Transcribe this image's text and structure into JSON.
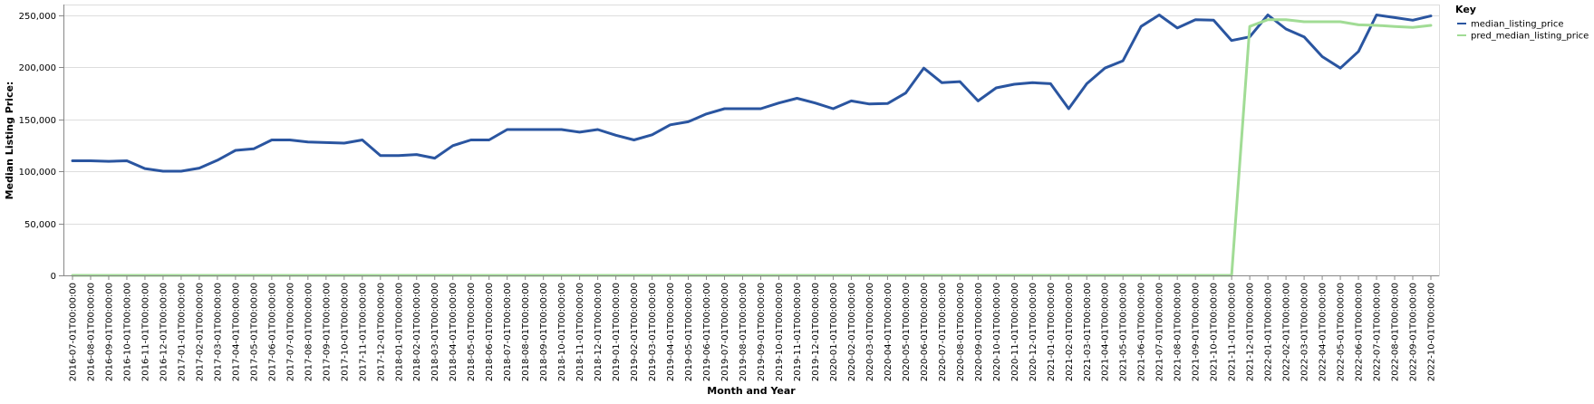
{
  "chart_data": {
    "type": "line",
    "xlabel": "Month and Year",
    "ylabel": "Median Listing Price:",
    "ylim": [
      0,
      260000
    ],
    "y_ticks": [
      "0",
      "50,000",
      "100,000",
      "150,000",
      "200,000",
      "250,000"
    ],
    "y_tick_values": [
      0,
      50000,
      100000,
      150000,
      200000,
      250000
    ],
    "grid": true,
    "legend_position": "top-right",
    "legend_title": "Key",
    "x": [
      "2016-07-01T00:00:00",
      "2016-08-01T00:00:00",
      "2016-09-01T00:00:00",
      "2016-10-01T00:00:00",
      "2016-11-01T00:00:00",
      "2016-12-01T00:00:00",
      "2017-01-01T00:00:00",
      "2017-02-01T00:00:00",
      "2017-03-01T00:00:00",
      "2017-04-01T00:00:00",
      "2017-05-01T00:00:00",
      "2017-06-01T00:00:00",
      "2017-07-01T00:00:00",
      "2017-08-01T00:00:00",
      "2017-09-01T00:00:00",
      "2017-10-01T00:00:00",
      "2017-11-01T00:00:00",
      "2017-12-01T00:00:00",
      "2018-01-01T00:00:00",
      "2018-02-01T00:00:00",
      "2018-03-01T00:00:00",
      "2018-04-01T00:00:00",
      "2018-05-01T00:00:00",
      "2018-06-01T00:00:00",
      "2018-07-01T00:00:00",
      "2018-08-01T00:00:00",
      "2018-09-01T00:00:00",
      "2018-10-01T00:00:00",
      "2018-11-01T00:00:00",
      "2018-12-01T00:00:00",
      "2019-01-01T00:00:00",
      "2019-02-01T00:00:00",
      "2019-03-01T00:00:00",
      "2019-04-01T00:00:00",
      "2019-05-01T00:00:00",
      "2019-06-01T00:00:00",
      "2019-07-01T00:00:00",
      "2019-08-01T00:00:00",
      "2019-09-01T00:00:00",
      "2019-10-01T00:00:00",
      "2019-11-01T00:00:00",
      "2019-12-01T00:00:00",
      "2020-01-01T00:00:00",
      "2020-02-01T00:00:00",
      "2020-03-01T00:00:00",
      "2020-04-01T00:00:00",
      "2020-05-01T00:00:00",
      "2020-06-01T00:00:00",
      "2020-07-01T00:00:00",
      "2020-08-01T00:00:00",
      "2020-09-01T00:00:00",
      "2020-10-01T00:00:00",
      "2020-11-01T00:00:00",
      "2020-12-01T00:00:00",
      "2021-01-01T00:00:00",
      "2021-02-01T00:00:00",
      "2021-03-01T00:00:00",
      "2021-04-01T00:00:00",
      "2021-05-01T00:00:00",
      "2021-06-01T00:00:00",
      "2021-07-01T00:00:00",
      "2021-08-01T00:00:00",
      "2021-09-01T00:00:00",
      "2021-10-01T00:00:00",
      "2021-11-01T00:00:00",
      "2021-12-01T00:00:00",
      "2022-01-01T00:00:00",
      "2022-02-01T00:00:00",
      "2022-03-01T00:00:00",
      "2022-04-01T00:00:00",
      "2022-05-01T00:00:00",
      "2022-06-01T00:00:00",
      "2022-07-01T00:00:00",
      "2022-08-01T00:00:00",
      "2022-09-01T00:00:00",
      "2022-10-01T00:00:00"
    ],
    "series": [
      {
        "name": "median_listing_price",
        "color": "#2a55a0",
        "values": [
          110000,
          110000,
          109500,
          110000,
          102500,
          100000,
          100000,
          103000,
          110500,
          120000,
          121500,
          130000,
          130000,
          128000,
          127500,
          127000,
          130000,
          115000,
          115000,
          116000,
          112500,
          124500,
          130000,
          130000,
          140000,
          140000,
          140000,
          140000,
          137500,
          140000,
          134500,
          130000,
          135000,
          144500,
          147500,
          155000,
          160000,
          160000,
          160000,
          165500,
          170000,
          165500,
          160000,
          167500,
          164500,
          165000,
          175000,
          199000,
          185000,
          186000,
          167500,
          180000,
          183500,
          185000,
          184000,
          160000,
          184000,
          199000,
          206000,
          239000,
          250000,
          237500,
          245500,
          245000,
          225500,
          229000,
          250000,
          236500,
          229000,
          210000,
          199000,
          215000,
          250000,
          247500,
          245000,
          249000
        ]
      },
      {
        "name": "pred_median_listing_price",
        "color": "#a1dc95",
        "values": [
          0,
          0,
          0,
          0,
          0,
          0,
          0,
          0,
          0,
          0,
          0,
          0,
          0,
          0,
          0,
          0,
          0,
          0,
          0,
          0,
          0,
          0,
          0,
          0,
          0,
          0,
          0,
          0,
          0,
          0,
          0,
          0,
          0,
          0,
          0,
          0,
          0,
          0,
          0,
          0,
          0,
          0,
          0,
          0,
          0,
          0,
          0,
          0,
          0,
          0,
          0,
          0,
          0,
          0,
          0,
          0,
          0,
          0,
          0,
          0,
          0,
          0,
          0,
          0,
          0,
          239000,
          245500,
          245500,
          243500,
          243500,
          243500,
          240500,
          240000,
          239000,
          238000,
          240000
        ]
      }
    ]
  }
}
